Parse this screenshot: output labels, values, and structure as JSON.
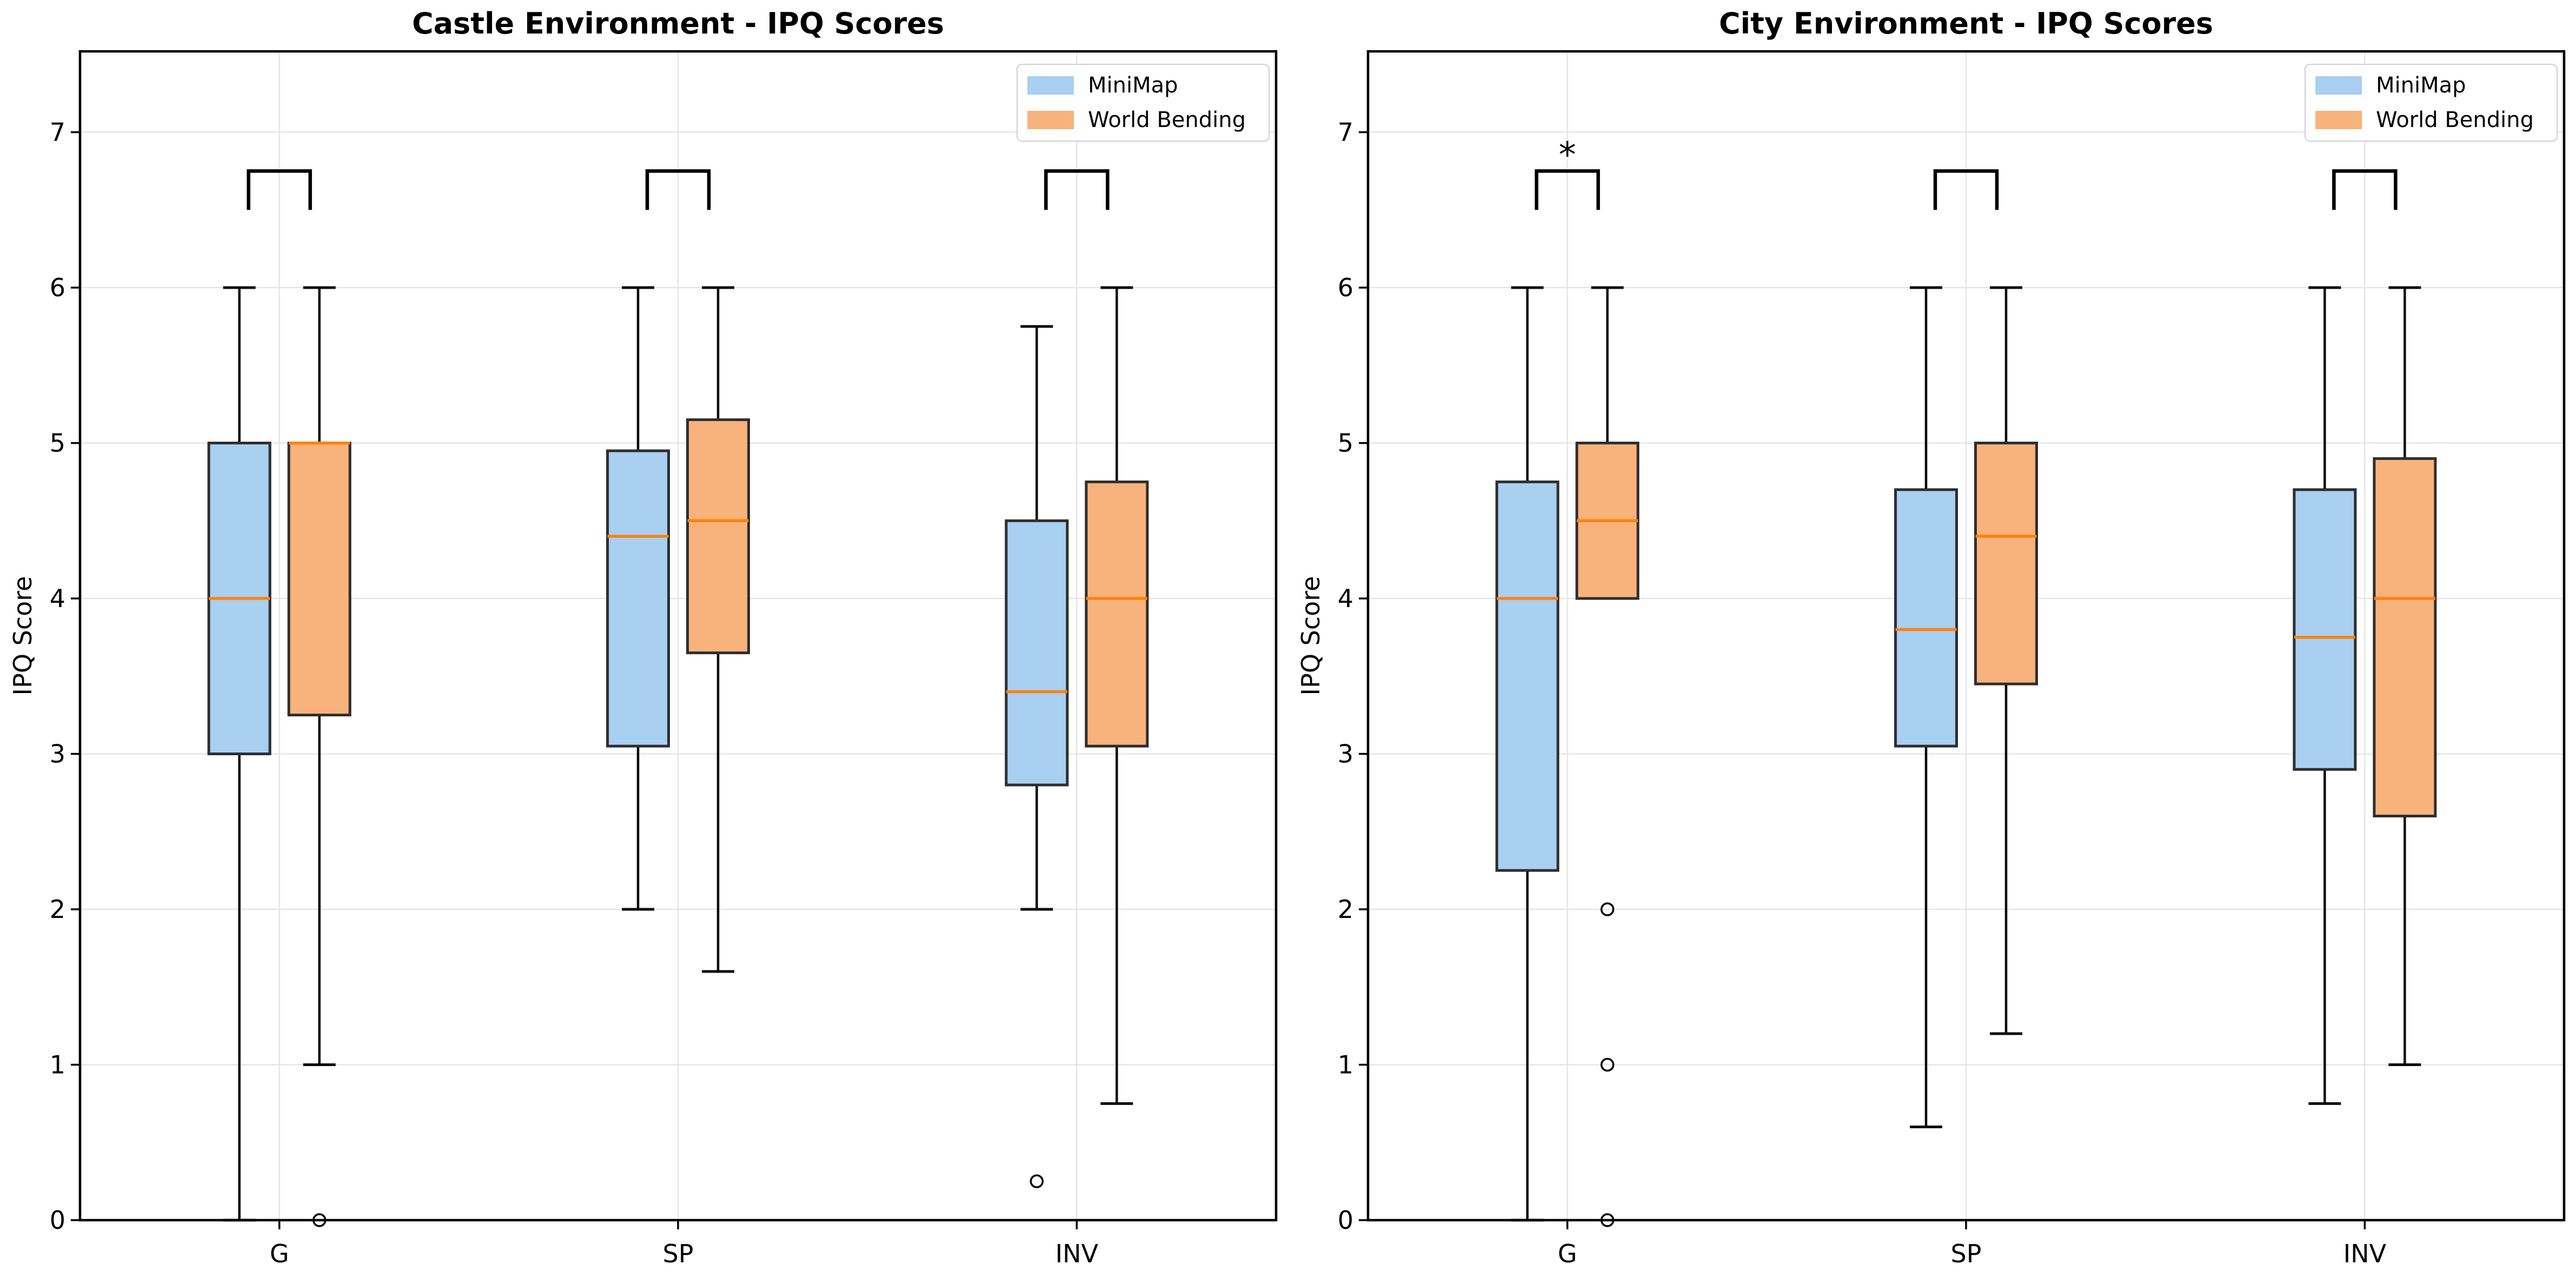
{
  "figure": {
    "background_color": "#ffffff"
  },
  "style": {
    "minimap_fill": "#a9cff1",
    "worldbending_fill": "#f8b37c",
    "median_color": "#ff820d",
    "box_edge_color": "#2e2e2e",
    "whisker_color": "#0a0a0a",
    "grid_color": "#e6e6e6",
    "spine_color": "#000000",
    "bracket_color": "#000000"
  },
  "chart_data": [
    {
      "type": "box",
      "title": "Castle Environment - IPQ Scores",
      "xlabel": "",
      "ylabel": "IPQ Score",
      "categories": [
        "G",
        "SP",
        "INV"
      ],
      "yticks": [
        0,
        1,
        2,
        3,
        4,
        5,
        6,
        7
      ],
      "ylim": [
        0,
        7.52
      ],
      "grid": true,
      "legend_position": "upper right",
      "series": [
        {
          "name": "MiniMap",
          "color": "#a9cff1",
          "boxes": [
            {
              "category": "G",
              "whislo": 0.0,
              "q1": 3.0,
              "med": 4.0,
              "q3": 5.0,
              "whishi": 6.0,
              "fliers": []
            },
            {
              "category": "SP",
              "whislo": 2.0,
              "q1": 3.05,
              "med": 4.4,
              "q3": 4.95,
              "whishi": 6.0,
              "fliers": []
            },
            {
              "category": "INV",
              "whislo": 2.0,
              "q1": 2.8,
              "med": 3.4,
              "q3": 4.5,
              "whishi": 5.75,
              "fliers": [
                0.25
              ]
            }
          ]
        },
        {
          "name": "World Bending",
          "color": "#f8b37c",
          "boxes": [
            {
              "category": "G",
              "whislo": 1.0,
              "q1": 3.25,
              "med": 5.0,
              "q3": 5.0,
              "whishi": 6.0,
              "fliers": [
                0.0
              ]
            },
            {
              "category": "SP",
              "whislo": 1.6,
              "q1": 3.65,
              "med": 4.5,
              "q3": 5.15,
              "whishi": 6.0,
              "fliers": []
            },
            {
              "category": "INV",
              "whislo": 0.75,
              "q1": 3.05,
              "med": 4.0,
              "q3": 4.75,
              "whishi": 6.0,
              "fliers": []
            }
          ]
        }
      ],
      "significance_brackets": [
        {
          "category": "G",
          "y_from": 6.5,
          "y_to": 6.75,
          "label": ""
        },
        {
          "category": "SP",
          "y_from": 6.5,
          "y_to": 6.75,
          "label": ""
        },
        {
          "category": "INV",
          "y_from": 6.5,
          "y_to": 6.75,
          "label": ""
        }
      ]
    },
    {
      "type": "box",
      "title": "City Environment - IPQ Scores",
      "xlabel": "",
      "ylabel": "IPQ Score",
      "categories": [
        "G",
        "SP",
        "INV"
      ],
      "yticks": [
        0,
        1,
        2,
        3,
        4,
        5,
        6,
        7
      ],
      "ylim": [
        0,
        7.52
      ],
      "grid": true,
      "legend_position": "upper right",
      "series": [
        {
          "name": "MiniMap",
          "color": "#a9cff1",
          "boxes": [
            {
              "category": "G",
              "whislo": 0.0,
              "q1": 2.25,
              "med": 4.0,
              "q3": 4.75,
              "whishi": 6.0,
              "fliers": []
            },
            {
              "category": "SP",
              "whislo": 0.6,
              "q1": 3.05,
              "med": 3.8,
              "q3": 4.7,
              "whishi": 6.0,
              "fliers": []
            },
            {
              "category": "INV",
              "whislo": 0.75,
              "q1": 2.9,
              "med": 3.75,
              "q3": 4.7,
              "whishi": 6.0,
              "fliers": []
            }
          ]
        },
        {
          "name": "World Bending",
          "color": "#f8b37c",
          "boxes": [
            {
              "category": "G",
              "whislo": 4.0,
              "q1": 4.0,
              "med": 4.5,
              "q3": 5.0,
              "whishi": 6.0,
              "fliers": [
                2.0,
                1.0,
                0.0
              ]
            },
            {
              "category": "SP",
              "whislo": 1.2,
              "q1": 3.45,
              "med": 4.4,
              "q3": 5.0,
              "whishi": 6.0,
              "fliers": []
            },
            {
              "category": "INV",
              "whislo": 1.0,
              "q1": 2.6,
              "med": 4.0,
              "q3": 4.9,
              "whishi": 6.0,
              "fliers": []
            }
          ]
        }
      ],
      "significance_brackets": [
        {
          "category": "G",
          "y_from": 6.5,
          "y_to": 6.75,
          "label": "*"
        },
        {
          "category": "SP",
          "y_from": 6.5,
          "y_to": 6.75,
          "label": ""
        },
        {
          "category": "INV",
          "y_from": 6.5,
          "y_to": 6.75,
          "label": ""
        }
      ]
    }
  ]
}
